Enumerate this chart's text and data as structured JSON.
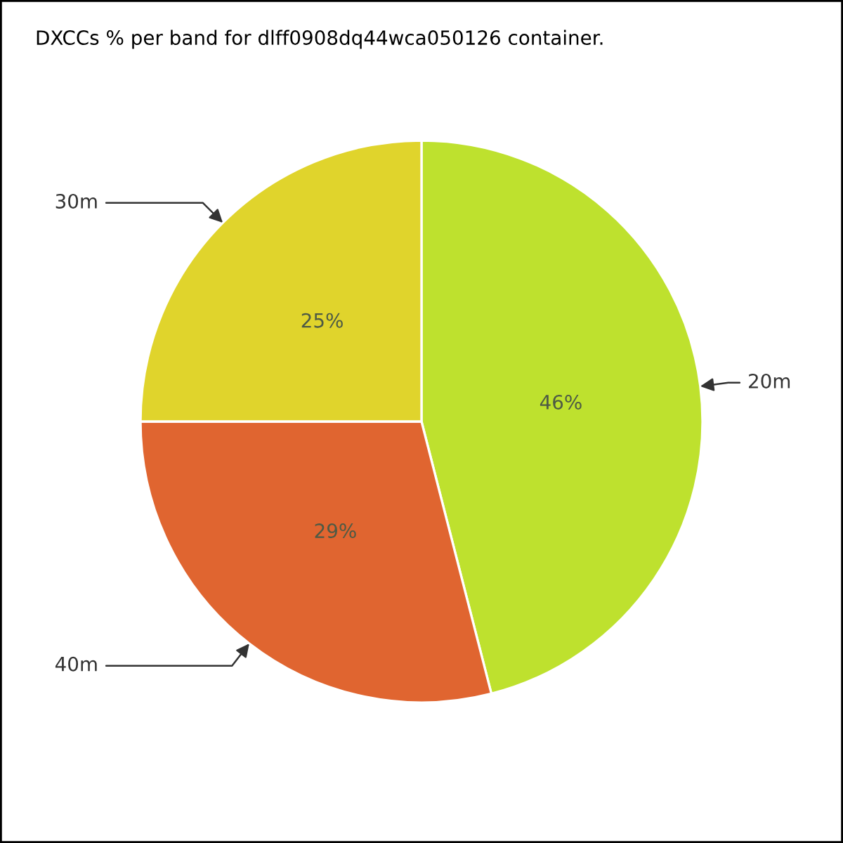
{
  "chart_data": {
    "type": "pie",
    "title": "DXCCs % per band for dlff0908dq44wca050126 container.",
    "categories": [
      "20m",
      "40m",
      "30m"
    ],
    "values": [
      46,
      29,
      25
    ],
    "colors": [
      "#bee12e",
      "#e06530",
      "#e0d42c"
    ],
    "value_labels": [
      "46%",
      "29%",
      "25%"
    ]
  }
}
